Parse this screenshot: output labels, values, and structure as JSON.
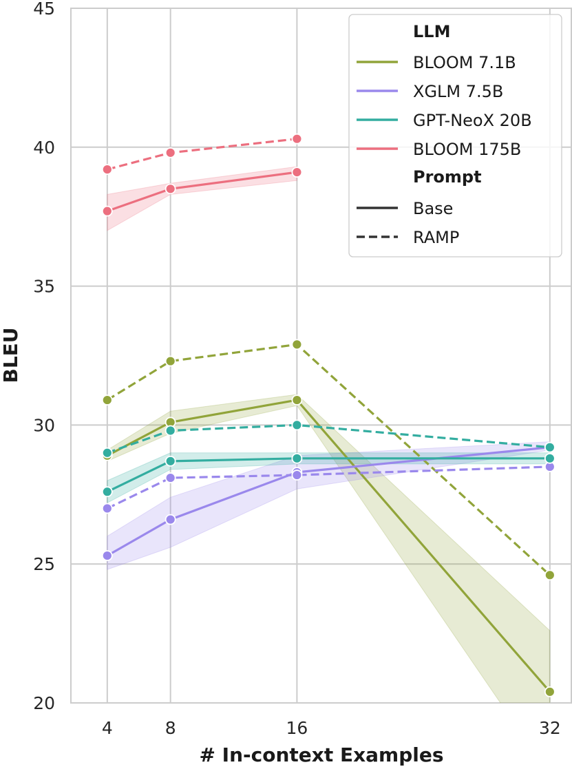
{
  "chart_data": {
    "type": "line",
    "xlabel": "# In-context Examples",
    "ylabel": "BLEU",
    "xlim": [
      1.7,
      33.4
    ],
    "ylim": [
      20,
      45
    ],
    "xticks": [
      4,
      8,
      16,
      32
    ],
    "xtick_labels": [
      "4",
      "8",
      "16",
      "32"
    ],
    "yticks": [
      20,
      25,
      30,
      35,
      40,
      45
    ],
    "ytick_labels": [
      "20",
      "25",
      "30",
      "35",
      "40",
      "45"
    ],
    "grid": true,
    "legend_placement": "top-right",
    "legend": {
      "hue_title": "LLM",
      "style_title": "Prompt",
      "styles": [
        {
          "name": "Base",
          "dash": "solid"
        },
        {
          "name": "RAMP",
          "dash": "dashed"
        }
      ]
    },
    "llms": [
      {
        "name": "BLOOM 7.1B",
        "color": "#91a43a"
      },
      {
        "name": "XGLM 7.5B",
        "color": "#9a88ec"
      },
      {
        "name": "GPT-NeoX 20B",
        "color": "#33ada0"
      },
      {
        "name": "BLOOM 175B",
        "color": "#ec6f7f"
      }
    ],
    "series": [
      {
        "llm": "BLOOM 7.1B",
        "prompt": "Base",
        "color": "#91a43a",
        "x": [
          4,
          8,
          16,
          32
        ],
        "y": [
          28.9,
          30.1,
          30.9,
          20.4
        ],
        "ci_low": [
          28.7,
          29.7,
          30.7,
          17.4
        ],
        "ci_high": [
          29.1,
          30.5,
          31.1,
          22.6
        ]
      },
      {
        "llm": "BLOOM 7.1B",
        "prompt": "RAMP",
        "color": "#91a43a",
        "x": [
          4,
          8,
          16,
          32
        ],
        "y": [
          30.9,
          32.3,
          32.9,
          24.6
        ]
      },
      {
        "llm": "XGLM 7.5B",
        "prompt": "Base",
        "color": "#9a88ec",
        "x": [
          4,
          8,
          16,
          32
        ],
        "y": [
          25.3,
          26.6,
          28.3,
          29.2
        ],
        "ci_low": [
          24.8,
          25.6,
          27.7,
          29.1
        ],
        "ci_high": [
          26.0,
          27.4,
          28.9,
          29.4
        ]
      },
      {
        "llm": "XGLM 7.5B",
        "prompt": "RAMP",
        "color": "#9a88ec",
        "x": [
          4,
          8,
          16,
          32
        ],
        "y": [
          27.0,
          28.1,
          28.2,
          28.5
        ]
      },
      {
        "llm": "GPT-NeoX 20B",
        "prompt": "Base",
        "color": "#33ada0",
        "x": [
          4,
          8,
          16,
          32
        ],
        "y": [
          27.6,
          28.7,
          28.8,
          28.8
        ],
        "ci_low": [
          27.2,
          28.4,
          28.6,
          28.6
        ],
        "ci_high": [
          28.0,
          29.0,
          29.0,
          29.0
        ]
      },
      {
        "llm": "GPT-NeoX 20B",
        "prompt": "RAMP",
        "color": "#33ada0",
        "x": [
          4,
          8,
          16,
          32
        ],
        "y": [
          29.0,
          29.8,
          30.0,
          29.2
        ]
      },
      {
        "llm": "BLOOM 175B",
        "prompt": "Base",
        "color": "#ec6f7f",
        "x": [
          4,
          8,
          16
        ],
        "y": [
          37.7,
          38.5,
          39.1
        ],
        "ci_low": [
          37.0,
          38.3,
          38.8
        ],
        "ci_high": [
          38.3,
          38.7,
          39.3
        ]
      },
      {
        "llm": "BLOOM 175B",
        "prompt": "RAMP",
        "color": "#ec6f7f",
        "x": [
          4,
          8,
          16
        ],
        "y": [
          39.2,
          39.8,
          40.3
        ]
      }
    ]
  }
}
